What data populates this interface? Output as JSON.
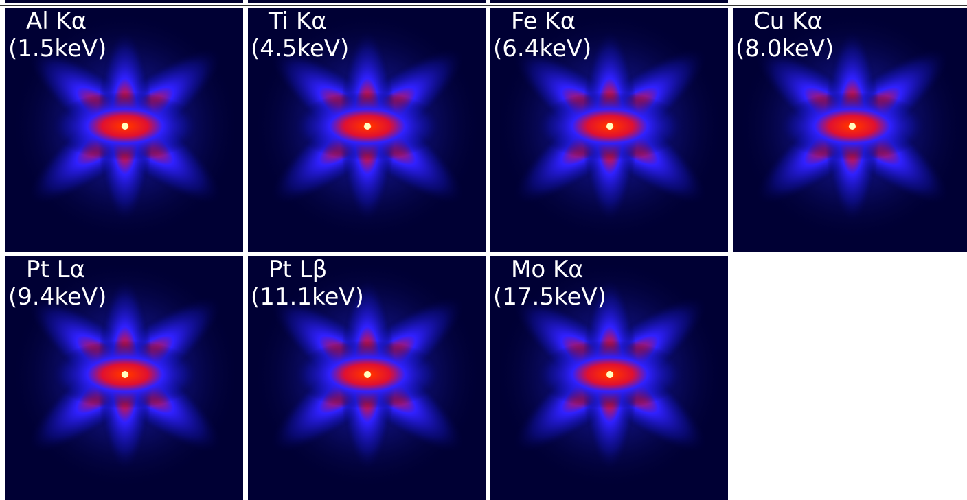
{
  "panels": [
    {
      "line": "Al Kα",
      "energy": "(1.5keV)"
    },
    {
      "line": "Ti Kα",
      "energy": "(4.5keV)"
    },
    {
      "line": "Fe Kα",
      "energy": "(6.4keV)"
    },
    {
      "line": "Cu Kα",
      "energy": "(8.0keV)"
    },
    {
      "line": "Pt Lα",
      "energy": "(9.4keV)"
    },
    {
      "line": "Pt Lβ",
      "energy": "(11.1keV)"
    },
    {
      "line": "Mo Kα",
      "energy": "(17.5keV)"
    }
  ]
}
